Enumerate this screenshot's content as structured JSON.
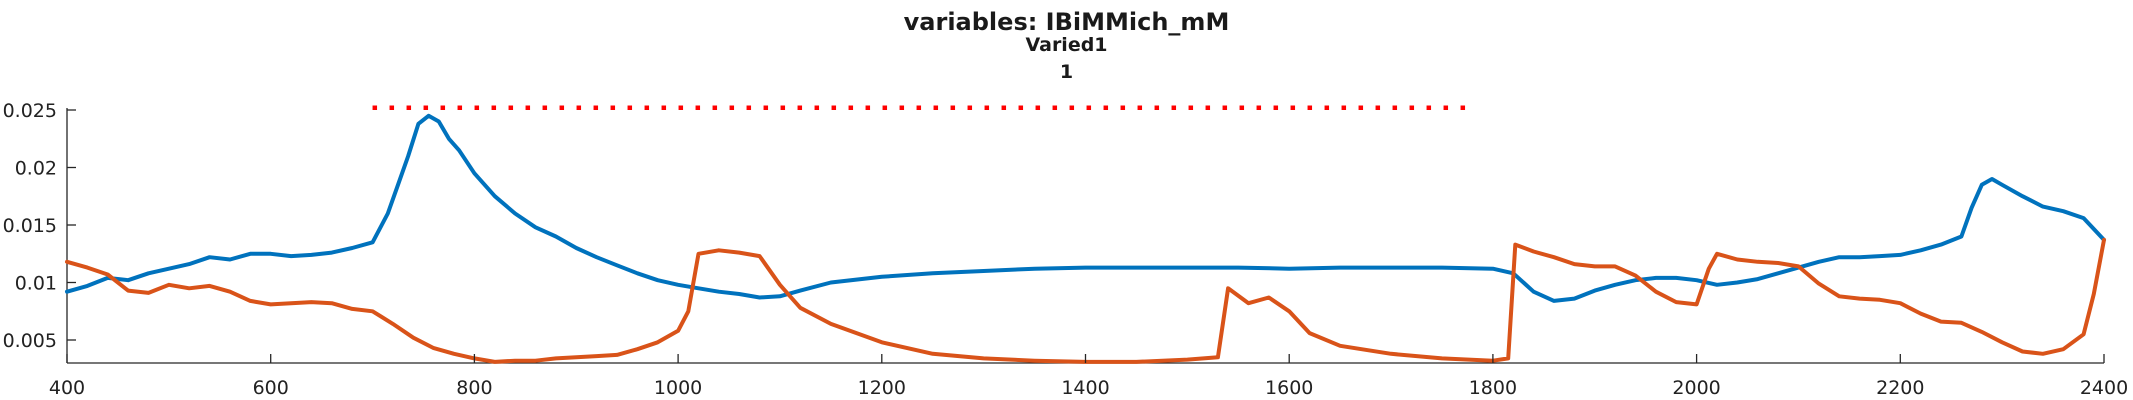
{
  "chart_data": {
    "type": "line",
    "title": "variables: IBiMMich_mM",
    "subtitle_lines": [
      "Varied1",
      "1"
    ],
    "xlabel": "",
    "ylabel": "",
    "xlim": [
      400,
      2400
    ],
    "ylim": [
      0.003,
      0.025
    ],
    "x_ticks": [
      400,
      600,
      800,
      1000,
      1200,
      1400,
      1600,
      1800,
      2000,
      2200,
      2400
    ],
    "x_tick_labels": [
      "400",
      "600",
      "800",
      "1000",
      "1200",
      "1400",
      "1600",
      "1800",
      "2000",
      "2200",
      "2400"
    ],
    "y_ticks": [
      0.005,
      0.01,
      0.015,
      0.02,
      0.025
    ],
    "y_tick_labels": [
      "0.005",
      "0.01",
      "0.015",
      "0.02",
      "0.025"
    ],
    "grid": false,
    "series": [
      {
        "color": "#0072BD",
        "x": [
          400,
          420,
          440,
          460,
          480,
          500,
          520,
          540,
          560,
          580,
          600,
          620,
          640,
          660,
          680,
          700,
          715,
          725,
          735,
          745,
          755,
          765,
          775,
          785,
          800,
          820,
          840,
          860,
          880,
          900,
          920,
          940,
          960,
          980,
          1000,
          1020,
          1040,
          1060,
          1080,
          1100,
          1120,
          1150,
          1200,
          1250,
          1300,
          1350,
          1400,
          1450,
          1500,
          1550,
          1600,
          1650,
          1700,
          1750,
          1800,
          1820,
          1840,
          1860,
          1880,
          1900,
          1920,
          1940,
          1960,
          1980,
          2000,
          2020,
          2040,
          2060,
          2080,
          2100,
          2120,
          2140,
          2160,
          2180,
          2200,
          2220,
          2240,
          2260,
          2270,
          2280,
          2290,
          2300,
          2320,
          2340,
          2360,
          2380,
          2400
        ],
        "y": [
          0.0092,
          0.0097,
          0.0104,
          0.0102,
          0.0108,
          0.0112,
          0.0116,
          0.0122,
          0.012,
          0.0125,
          0.0125,
          0.0123,
          0.0124,
          0.0126,
          0.013,
          0.0135,
          0.016,
          0.0185,
          0.021,
          0.0238,
          0.0245,
          0.024,
          0.0225,
          0.0215,
          0.0195,
          0.0175,
          0.016,
          0.0148,
          0.014,
          0.013,
          0.0122,
          0.0115,
          0.0108,
          0.0102,
          0.0098,
          0.0095,
          0.0092,
          0.009,
          0.0087,
          0.0088,
          0.0093,
          0.01,
          0.0105,
          0.0108,
          0.011,
          0.0112,
          0.0113,
          0.0113,
          0.0113,
          0.0113,
          0.0112,
          0.0113,
          0.0113,
          0.0113,
          0.0112,
          0.0108,
          0.0092,
          0.0084,
          0.0086,
          0.0093,
          0.0098,
          0.0102,
          0.0104,
          0.0104,
          0.0102,
          0.0098,
          0.01,
          0.0103,
          0.0108,
          0.0113,
          0.0118,
          0.0122,
          0.0122,
          0.0123,
          0.0124,
          0.0128,
          0.0133,
          0.014,
          0.0165,
          0.0185,
          0.019,
          0.0185,
          0.0175,
          0.0166,
          0.0162,
          0.0156,
          0.0137
        ]
      },
      {
        "color": "#D95319",
        "x": [
          400,
          420,
          440,
          460,
          480,
          500,
          520,
          540,
          560,
          580,
          600,
          620,
          640,
          660,
          680,
          700,
          720,
          740,
          760,
          780,
          800,
          820,
          840,
          860,
          880,
          900,
          920,
          940,
          960,
          980,
          1000,
          1010,
          1020,
          1040,
          1060,
          1080,
          1100,
          1120,
          1150,
          1200,
          1250,
          1300,
          1350,
          1400,
          1450,
          1500,
          1530,
          1540,
          1560,
          1580,
          1600,
          1620,
          1650,
          1700,
          1750,
          1800,
          1815,
          1822,
          1840,
          1860,
          1880,
          1900,
          1920,
          1940,
          1960,
          1980,
          2000,
          2012,
          2020,
          2040,
          2060,
          2080,
          2100,
          2120,
          2140,
          2160,
          2180,
          2200,
          2220,
          2240,
          2260,
          2280,
          2300,
          2320,
          2340,
          2360,
          2380,
          2390,
          2400
        ],
        "y": [
          0.0118,
          0.0113,
          0.0107,
          0.0093,
          0.0091,
          0.0098,
          0.0095,
          0.0097,
          0.0092,
          0.0084,
          0.0081,
          0.0082,
          0.0083,
          0.0082,
          0.0077,
          0.0075,
          0.0064,
          0.0052,
          0.0043,
          0.0038,
          0.0034,
          0.0031,
          0.0032,
          0.0032,
          0.0034,
          0.0035,
          0.0036,
          0.0037,
          0.0042,
          0.0048,
          0.0058,
          0.0075,
          0.0125,
          0.0128,
          0.0126,
          0.0123,
          0.0098,
          0.0078,
          0.0064,
          0.0048,
          0.0038,
          0.0034,
          0.0032,
          0.0031,
          0.0031,
          0.0033,
          0.0035,
          0.0095,
          0.0082,
          0.0087,
          0.0075,
          0.0056,
          0.0045,
          0.0038,
          0.0034,
          0.0032,
          0.0034,
          0.0133,
          0.0127,
          0.0122,
          0.0116,
          0.0114,
          0.0114,
          0.0106,
          0.0092,
          0.0083,
          0.0081,
          0.0112,
          0.0125,
          0.012,
          0.0118,
          0.0117,
          0.0114,
          0.0099,
          0.0088,
          0.0086,
          0.0085,
          0.0082,
          0.0073,
          0.0066,
          0.0065,
          0.0057,
          0.0048,
          0.004,
          0.0038,
          0.0042,
          0.0055,
          0.009,
          0.0137
        ]
      },
      {
        "color": "#FF0000",
        "style": "dotted",
        "x_range": [
          700,
          1780
        ],
        "y": 0.0252
      }
    ]
  }
}
